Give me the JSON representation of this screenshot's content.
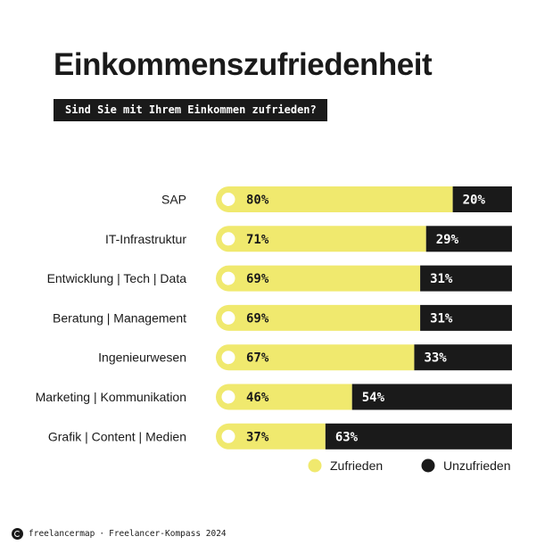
{
  "chart_data": {
    "type": "bar",
    "orientation": "horizontal",
    "stacked": true,
    "title": "Einkommenszufriedenheit",
    "subtitle": "Sind Sie mit Ihrem Einkommen zufrieden?",
    "categories": [
      "SAP",
      "IT-Infrastruktur",
      "Entwicklung | Tech | Data",
      "Beratung | Management",
      "Ingenieurwesen",
      "Marketing | Kommunikation",
      "Grafik | Content | Medien"
    ],
    "series": [
      {
        "name": "Zufrieden",
        "color": "#f0e96e",
        "values": [
          80,
          71,
          69,
          69,
          67,
          46,
          37
        ]
      },
      {
        "name": "Unzufrieden",
        "color": "#1a1a1a",
        "values": [
          20,
          29,
          31,
          31,
          33,
          54,
          63
        ]
      }
    ],
    "value_suffix": "%",
    "xlim": [
      0,
      100
    ],
    "grid": false,
    "legend": "bottom-right"
  },
  "footer": {
    "brand": "freelancermap",
    "separator": "·",
    "source": "Freelancer-Kompass 2024"
  }
}
